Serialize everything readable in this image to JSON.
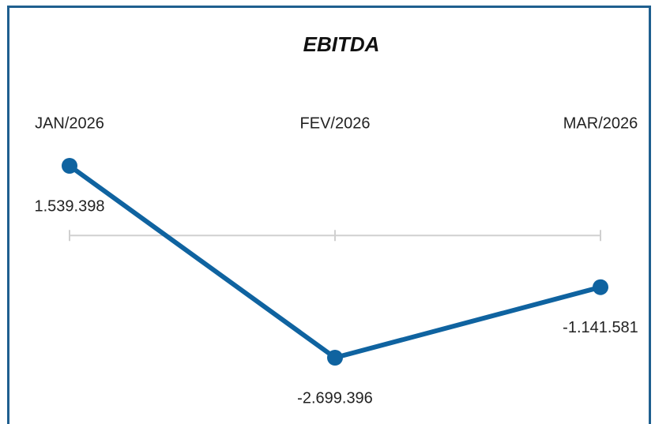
{
  "chart_data": {
    "type": "line",
    "title": "EBITDA",
    "categories": [
      "JAN/2026",
      "FEV/2026",
      "MAR/2026"
    ],
    "series": [
      {
        "name": "EBITDA",
        "color": "#0f63a0",
        "values": [
          1539398,
          -2699396,
          -1141581
        ],
        "value_labels": [
          "1.539.398",
          "-2.699.396",
          "-1.141.581"
        ]
      }
    ]
  }
}
